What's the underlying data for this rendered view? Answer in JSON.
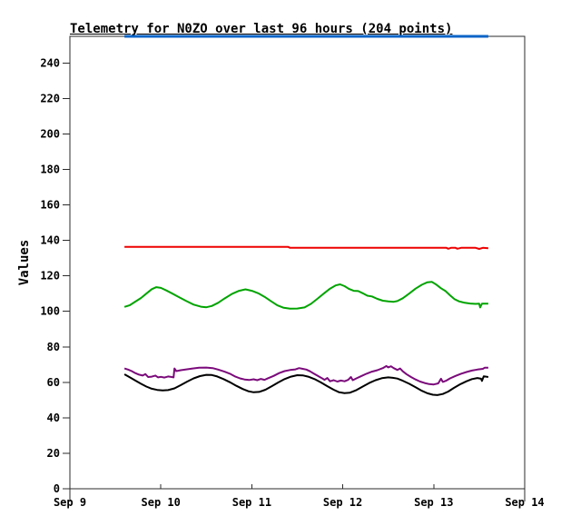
{
  "window": {
    "background": "#ffffff"
  },
  "title": "Telemetry for N0ZO over last 96 hours (204 points)",
  "chart_data": {
    "type": "line",
    "title": "Telemetry for N0ZO over last 96 hours (204 points)",
    "xlabel": "",
    "ylabel": "Values",
    "xlim": [
      9,
      14
    ],
    "ylim": [
      0,
      255
    ],
    "grid": false,
    "legend": "none",
    "title_color": "#000000",
    "axis_color": "#2b2b2b",
    "x_axis": {
      "tick_days": [
        9,
        10,
        11,
        12,
        13,
        14
      ],
      "tick_labels": [
        "Sep 9",
        "Sep 10",
        "Sep 11",
        "Sep 12",
        "Sep 13",
        "Sep 14"
      ]
    },
    "y_axis": {
      "ticks": [
        0,
        20,
        40,
        60,
        80,
        100,
        120,
        140,
        160,
        180,
        200,
        220,
        240
      ]
    },
    "series": [
      {
        "name": "channel-blue",
        "color": "#0B64C8",
        "stroke_width": 3,
        "points": [
          [
            9.6,
            255
          ],
          [
            13.6,
            255
          ]
        ]
      },
      {
        "name": "channel-red",
        "color": "#EE0000",
        "stroke_width": 2,
        "points": [
          [
            9.6,
            136.3
          ],
          [
            11.4,
            136.3
          ],
          [
            11.42,
            135.8
          ],
          [
            13.14,
            135.8
          ],
          [
            13.16,
            135.3
          ],
          [
            13.19,
            135.8
          ],
          [
            13.24,
            135.8
          ],
          [
            13.26,
            135.3
          ],
          [
            13.3,
            135.8
          ],
          [
            13.46,
            135.8
          ],
          [
            13.5,
            135.2
          ],
          [
            13.54,
            135.8
          ],
          [
            13.6,
            135.6
          ]
        ]
      },
      {
        "name": "channel-green",
        "color": "#00A400",
        "stroke_width": 2,
        "points": [
          [
            9.6,
            102.5
          ],
          [
            9.66,
            103.5
          ],
          [
            9.72,
            105.5
          ],
          [
            9.78,
            107.5
          ],
          [
            9.84,
            110.0
          ],
          [
            9.9,
            112.5
          ],
          [
            9.95,
            113.6
          ],
          [
            10.0,
            113.2
          ],
          [
            10.06,
            111.8
          ],
          [
            10.12,
            110.2
          ],
          [
            10.2,
            108.0
          ],
          [
            10.28,
            105.8
          ],
          [
            10.36,
            103.8
          ],
          [
            10.44,
            102.6
          ],
          [
            10.5,
            102.3
          ],
          [
            10.56,
            103.0
          ],
          [
            10.63,
            104.8
          ],
          [
            10.7,
            107.2
          ],
          [
            10.78,
            109.8
          ],
          [
            10.86,
            111.6
          ],
          [
            10.93,
            112.4
          ],
          [
            11.0,
            111.6
          ],
          [
            11.07,
            110.2
          ],
          [
            11.14,
            108.2
          ],
          [
            11.21,
            105.8
          ],
          [
            11.28,
            103.4
          ],
          [
            11.35,
            102.0
          ],
          [
            11.42,
            101.5
          ],
          [
            11.5,
            101.6
          ],
          [
            11.58,
            102.2
          ],
          [
            11.65,
            104.2
          ],
          [
            11.72,
            107.0
          ],
          [
            11.79,
            110.0
          ],
          [
            11.86,
            112.8
          ],
          [
            11.92,
            114.6
          ],
          [
            11.97,
            115.2
          ],
          [
            12.02,
            114.2
          ],
          [
            12.07,
            112.6
          ],
          [
            12.12,
            111.6
          ],
          [
            12.17,
            111.4
          ],
          [
            12.22,
            110.2
          ],
          [
            12.27,
            108.8
          ],
          [
            12.32,
            108.4
          ],
          [
            12.38,
            107.0
          ],
          [
            12.44,
            106.0
          ],
          [
            12.5,
            105.6
          ],
          [
            12.56,
            105.4
          ],
          [
            12.6,
            105.8
          ],
          [
            12.66,
            107.4
          ],
          [
            12.73,
            110.0
          ],
          [
            12.8,
            112.8
          ],
          [
            12.87,
            115.0
          ],
          [
            12.93,
            116.4
          ],
          [
            12.98,
            116.6
          ],
          [
            13.03,
            115.0
          ],
          [
            13.08,
            113.0
          ],
          [
            13.13,
            111.4
          ],
          [
            13.18,
            109.0
          ],
          [
            13.23,
            106.8
          ],
          [
            13.28,
            105.6
          ],
          [
            13.34,
            104.8
          ],
          [
            13.4,
            104.4
          ],
          [
            13.46,
            104.2
          ],
          [
            13.5,
            104.3
          ],
          [
            13.51,
            102.2
          ],
          [
            13.53,
            104.3
          ],
          [
            13.6,
            104.3
          ]
        ]
      },
      {
        "name": "channel-purple",
        "color": "#7B0A7B",
        "stroke_width": 2,
        "points": [
          [
            9.6,
            67.8
          ],
          [
            9.64,
            67.2
          ],
          [
            9.68,
            66.3
          ],
          [
            9.72,
            65.2
          ],
          [
            9.76,
            64.3
          ],
          [
            9.8,
            63.8
          ],
          [
            9.83,
            64.6
          ],
          [
            9.86,
            63.0
          ],
          [
            9.9,
            63.2
          ],
          [
            9.94,
            63.8
          ],
          [
            9.97,
            62.8
          ],
          [
            10.0,
            63.1
          ],
          [
            10.04,
            62.7
          ],
          [
            10.08,
            63.3
          ],
          [
            10.12,
            63.0
          ],
          [
            10.14,
            62.8
          ],
          [
            10.15,
            67.8
          ],
          [
            10.17,
            66.3
          ],
          [
            10.22,
            66.8
          ],
          [
            10.28,
            67.3
          ],
          [
            10.35,
            67.8
          ],
          [
            10.42,
            68.2
          ],
          [
            10.5,
            68.3
          ],
          [
            10.57,
            68.0
          ],
          [
            10.63,
            67.2
          ],
          [
            10.7,
            66.0
          ],
          [
            10.76,
            64.8
          ],
          [
            10.82,
            63.2
          ],
          [
            10.87,
            62.2
          ],
          [
            10.92,
            61.6
          ],
          [
            10.97,
            61.3
          ],
          [
            11.02,
            61.7
          ],
          [
            11.06,
            61.2
          ],
          [
            11.1,
            61.9
          ],
          [
            11.14,
            61.4
          ],
          [
            11.18,
            62.3
          ],
          [
            11.24,
            63.6
          ],
          [
            11.3,
            65.2
          ],
          [
            11.36,
            66.3
          ],
          [
            11.42,
            66.9
          ],
          [
            11.48,
            67.3
          ],
          [
            11.52,
            68.0
          ],
          [
            11.56,
            67.6
          ],
          [
            11.6,
            67.2
          ],
          [
            11.64,
            66.2
          ],
          [
            11.68,
            65.0
          ],
          [
            11.72,
            63.8
          ],
          [
            11.76,
            62.6
          ],
          [
            11.8,
            61.4
          ],
          [
            11.83,
            62.4
          ],
          [
            11.86,
            60.6
          ],
          [
            11.9,
            61.2
          ],
          [
            11.94,
            60.4
          ],
          [
            11.98,
            61.0
          ],
          [
            12.02,
            60.6
          ],
          [
            12.06,
            61.4
          ],
          [
            12.09,
            63.0
          ],
          [
            12.11,
            61.2
          ],
          [
            12.15,
            62.2
          ],
          [
            12.2,
            63.4
          ],
          [
            12.26,
            64.8
          ],
          [
            12.32,
            66.0
          ],
          [
            12.38,
            66.8
          ],
          [
            12.44,
            68.0
          ],
          [
            12.48,
            69.2
          ],
          [
            12.5,
            68.4
          ],
          [
            12.53,
            69.0
          ],
          [
            12.56,
            68.0
          ],
          [
            12.6,
            67.0
          ],
          [
            12.63,
            67.8
          ],
          [
            12.66,
            66.2
          ],
          [
            12.7,
            64.6
          ],
          [
            12.75,
            63.0
          ],
          [
            12.8,
            61.6
          ],
          [
            12.85,
            60.4
          ],
          [
            12.9,
            59.6
          ],
          [
            12.95,
            59.0
          ],
          [
            13.0,
            58.8
          ],
          [
            13.05,
            59.4
          ],
          [
            13.08,
            62.0
          ],
          [
            13.1,
            60.2
          ],
          [
            13.14,
            61.0
          ],
          [
            13.18,
            62.2
          ],
          [
            13.24,
            63.6
          ],
          [
            13.3,
            64.8
          ],
          [
            13.36,
            65.8
          ],
          [
            13.42,
            66.6
          ],
          [
            13.48,
            67.2
          ],
          [
            13.54,
            67.6
          ],
          [
            13.56,
            68.2
          ],
          [
            13.6,
            68.2
          ]
        ]
      },
      {
        "name": "channel-black",
        "color": "#000000",
        "stroke_width": 2,
        "points": [
          [
            9.6,
            64.5
          ],
          [
            9.66,
            62.8
          ],
          [
            9.72,
            61.0
          ],
          [
            9.78,
            59.2
          ],
          [
            9.84,
            57.6
          ],
          [
            9.9,
            56.4
          ],
          [
            9.96,
            55.7
          ],
          [
            10.02,
            55.4
          ],
          [
            10.08,
            55.6
          ],
          [
            10.15,
            56.6
          ],
          [
            10.22,
            58.4
          ],
          [
            10.29,
            60.4
          ],
          [
            10.36,
            62.2
          ],
          [
            10.43,
            63.5
          ],
          [
            10.5,
            64.2
          ],
          [
            10.56,
            64.1
          ],
          [
            10.62,
            63.3
          ],
          [
            10.69,
            61.8
          ],
          [
            10.76,
            60.0
          ],
          [
            10.83,
            58.0
          ],
          [
            10.9,
            56.2
          ],
          [
            10.96,
            55.0
          ],
          [
            11.02,
            54.4
          ],
          [
            11.08,
            54.6
          ],
          [
            11.15,
            55.8
          ],
          [
            11.22,
            57.8
          ],
          [
            11.29,
            59.9
          ],
          [
            11.36,
            61.8
          ],
          [
            11.43,
            63.2
          ],
          [
            11.5,
            64.0
          ],
          [
            11.56,
            63.9
          ],
          [
            11.62,
            63.2
          ],
          [
            11.69,
            61.8
          ],
          [
            11.76,
            59.9
          ],
          [
            11.83,
            57.8
          ],
          [
            11.9,
            55.8
          ],
          [
            11.96,
            54.4
          ],
          [
            12.02,
            53.9
          ],
          [
            12.08,
            54.2
          ],
          [
            12.15,
            55.6
          ],
          [
            12.22,
            57.6
          ],
          [
            12.29,
            59.6
          ],
          [
            12.36,
            61.2
          ],
          [
            12.43,
            62.3
          ],
          [
            12.5,
            62.8
          ],
          [
            12.55,
            62.5
          ],
          [
            12.6,
            62.1
          ],
          [
            12.66,
            60.9
          ],
          [
            12.73,
            59.2
          ],
          [
            12.8,
            57.2
          ],
          [
            12.87,
            55.2
          ],
          [
            12.93,
            53.8
          ],
          [
            12.99,
            53.0
          ],
          [
            13.04,
            52.8
          ],
          [
            13.1,
            53.4
          ],
          [
            13.16,
            54.8
          ],
          [
            13.22,
            56.8
          ],
          [
            13.29,
            58.9
          ],
          [
            13.36,
            60.6
          ],
          [
            13.42,
            61.8
          ],
          [
            13.48,
            62.4
          ],
          [
            13.52,
            62.0
          ],
          [
            13.53,
            60.8
          ],
          [
            13.55,
            63.4
          ],
          [
            13.6,
            63.0
          ]
        ]
      }
    ]
  }
}
